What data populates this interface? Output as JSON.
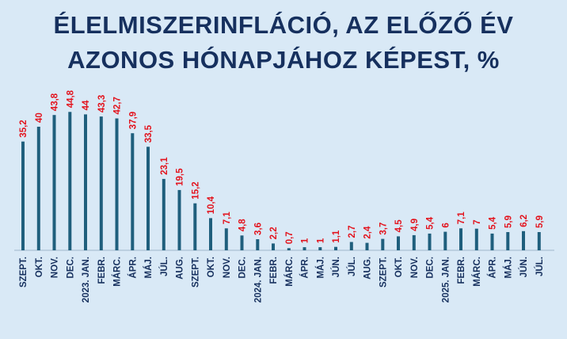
{
  "chart_data": {
    "type": "bar",
    "title_lines": [
      "ÉLELMISZERINFLÁCIÓ, AZ ELŐZŐ ÉV",
      "AZONOS HÓNAPJÁHOZ KÉPEST, %"
    ],
    "categories": [
      "SZEPT.",
      "OKT.",
      "NOV.",
      "DEC.",
      "2023. JAN.",
      "FEBR.",
      "MÁRC.",
      "ÁPR.",
      "MÁJ.",
      "JÚL.",
      "AUG.",
      "SZEPT.",
      "OKT.",
      "NOV.",
      "DEC.",
      "2024. JAN.",
      "FEBR.",
      "MÁRC.",
      "ÁPR.",
      "MÁJ.",
      "JÚN.",
      "JÚL.",
      "AUG.",
      "SZEPT.",
      "OKT.",
      "NOV.",
      "DEC.",
      "2025. JAN.",
      "FEBR.",
      "MÁRC.",
      "ÁPR.",
      "MÁJ.",
      "JÚN.",
      "JÚL."
    ],
    "values": [
      35.2,
      40,
      43.8,
      44.8,
      44,
      43.3,
      42.7,
      37.9,
      33.5,
      23.1,
      19.5,
      15.2,
      10.4,
      7.1,
      4.8,
      3.6,
      2.2,
      0.7,
      1,
      1,
      1.1,
      2.7,
      2.4,
      3.7,
      4.5,
      4.9,
      5.4,
      6,
      7.1,
      7,
      5.4,
      5.9,
      6.2,
      5.9
    ],
    "value_labels": [
      "35,2",
      "40",
      "43,8",
      "44,8",
      "44",
      "43,3",
      "42,7",
      "37,9",
      "33,5",
      "23,1",
      "19,5",
      "15,2",
      "10,4",
      "7,1",
      "4,8",
      "3,6",
      "2,2",
      "0,7",
      "1",
      "1",
      "1,1",
      "2,7",
      "2,4",
      "3,7",
      "4,5",
      "4,9",
      "5,4",
      "6",
      "7,1",
      "7",
      "5,4",
      "5,9",
      "6,2",
      "5,9"
    ],
    "ylim": [
      0,
      50
    ],
    "grid": false,
    "legend": "none",
    "colors": {
      "bar": "#1f5f7d",
      "value_label": "#e3121c",
      "title": "#16305e",
      "background": "#d9e9f6"
    }
  }
}
